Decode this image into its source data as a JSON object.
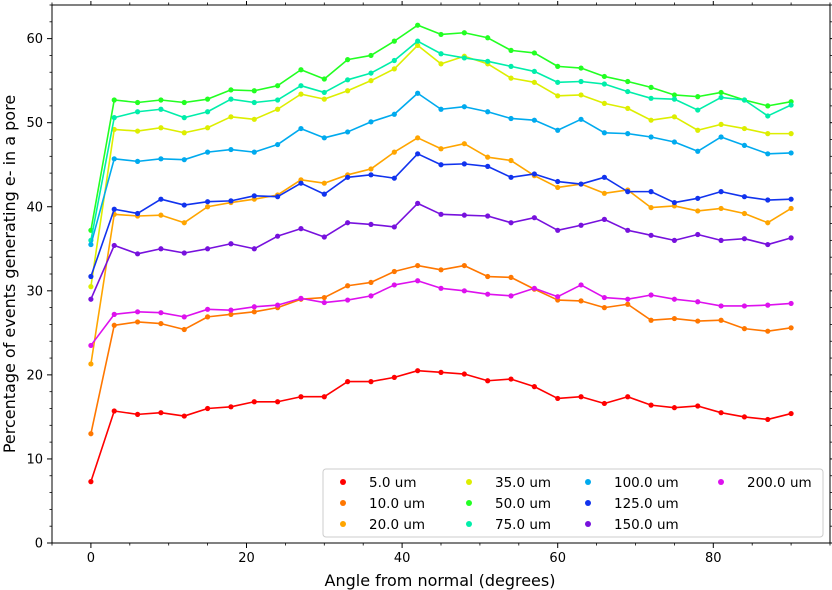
{
  "chart_data": {
    "type": "line",
    "xlabel": "Angle from normal (degrees)",
    "ylabel": "Percentage of events generating e- in a pore",
    "xlim": [
      -5,
      95
    ],
    "ylim": [
      0,
      64
    ],
    "xticks": [
      0,
      20,
      40,
      60,
      80
    ],
    "yticks": [
      0,
      10,
      20,
      30,
      40,
      50,
      60
    ],
    "grid": false,
    "legend_position": "lower-right",
    "legend_columns": 4,
    "x": [
      0,
      3,
      6,
      9,
      12,
      15,
      18,
      21,
      24,
      27,
      30,
      33,
      36,
      39,
      42,
      45,
      48,
      51,
      54,
      57,
      60,
      63,
      66,
      69,
      72,
      75,
      78,
      81,
      84,
      87,
      90
    ],
    "series": [
      {
        "name": "5.0 um",
        "color": "#ff0000",
        "values": [
          7.3,
          15.7,
          15.3,
          15.5,
          15.1,
          16.0,
          16.2,
          16.8,
          16.8,
          17.4,
          17.4,
          19.2,
          19.2,
          19.7,
          20.5,
          20.3,
          20.1,
          19.3,
          19.5,
          18.6,
          17.2,
          17.4,
          16.6,
          17.4,
          16.4,
          16.1,
          16.3,
          15.5,
          15.0,
          14.7,
          15.4
        ]
      },
      {
        "name": "10.0 um",
        "color": "#ff7700",
        "values": [
          13.0,
          25.9,
          26.3,
          26.1,
          25.4,
          26.9,
          27.2,
          27.5,
          28.0,
          29.0,
          29.2,
          30.6,
          31.0,
          32.3,
          33.0,
          32.5,
          33.0,
          31.7,
          31.6,
          30.2,
          28.9,
          28.8,
          28.0,
          28.4,
          26.5,
          26.7,
          26.4,
          26.5,
          25.5,
          25.2,
          25.6
        ]
      },
      {
        "name": "20.0 um",
        "color": "#ffa500",
        "values": [
          21.3,
          39.1,
          38.9,
          39.0,
          38.1,
          40.0,
          40.5,
          40.9,
          41.4,
          43.2,
          42.8,
          43.8,
          44.5,
          46.5,
          48.2,
          46.9,
          47.5,
          45.9,
          45.5,
          43.7,
          42.3,
          42.7,
          41.6,
          42.0,
          39.9,
          40.1,
          39.5,
          39.8,
          39.2,
          38.1,
          39.8
        ]
      },
      {
        "name": "35.0 um",
        "color": "#ddee00",
        "values": [
          30.5,
          49.2,
          49.0,
          49.4,
          48.8,
          49.4,
          50.7,
          50.4,
          51.6,
          53.4,
          52.8,
          53.8,
          55.0,
          56.4,
          59.2,
          57.0,
          57.9,
          57.0,
          55.3,
          54.8,
          53.2,
          53.3,
          52.3,
          51.7,
          50.3,
          50.7,
          49.1,
          49.8,
          49.3,
          48.7,
          48.7
        ]
      },
      {
        "name": "50.0 um",
        "color": "#22ff22",
        "values": [
          37.2,
          52.7,
          52.4,
          52.7,
          52.4,
          52.8,
          53.9,
          53.8,
          54.4,
          56.3,
          55.2,
          57.5,
          58.0,
          59.7,
          61.6,
          60.5,
          60.7,
          60.1,
          58.6,
          58.3,
          56.7,
          56.5,
          55.5,
          54.9,
          54.2,
          53.3,
          53.1,
          53.6,
          52.7,
          52.0,
          52.5
        ]
      },
      {
        "name": "75.0 um",
        "color": "#00eeaa",
        "values": [
          36.0,
          50.6,
          51.3,
          51.6,
          50.6,
          51.3,
          52.8,
          52.4,
          52.7,
          54.4,
          53.6,
          55.1,
          55.9,
          57.4,
          59.7,
          58.2,
          57.7,
          57.3,
          56.7,
          56.1,
          54.8,
          54.9,
          54.6,
          53.7,
          52.9,
          52.8,
          51.5,
          53.0,
          52.7,
          50.8,
          52.1
        ]
      },
      {
        "name": "100.0 um",
        "color": "#00aaee",
        "values": [
          35.5,
          45.7,
          45.4,
          45.7,
          45.6,
          46.5,
          46.8,
          46.5,
          47.4,
          49.3,
          48.2,
          48.9,
          50.1,
          51.0,
          53.5,
          51.6,
          51.9,
          51.3,
          50.5,
          50.3,
          49.1,
          50.4,
          48.8,
          48.7,
          48.3,
          47.7,
          46.6,
          48.3,
          47.3,
          46.3,
          46.4
        ]
      },
      {
        "name": "125.0 um",
        "color": "#1133ee",
        "values": [
          31.7,
          39.7,
          39.2,
          40.9,
          40.2,
          40.6,
          40.7,
          41.3,
          41.2,
          42.8,
          41.5,
          43.5,
          43.8,
          43.4,
          46.3,
          45.0,
          45.1,
          44.8,
          43.5,
          43.9,
          43.0,
          42.7,
          43.5,
          41.8,
          41.8,
          40.5,
          41.0,
          41.8,
          41.2,
          40.8,
          40.9
        ]
      },
      {
        "name": "150.0 um",
        "color": "#7711dd",
        "values": [
          29.0,
          35.4,
          34.4,
          35.0,
          34.5,
          35.0,
          35.6,
          35.0,
          36.5,
          37.4,
          36.4,
          38.1,
          37.9,
          37.6,
          40.4,
          39.1,
          39.0,
          38.9,
          38.1,
          38.7,
          37.2,
          37.8,
          38.5,
          37.2,
          36.6,
          36.0,
          36.7,
          36.0,
          36.2,
          35.5,
          36.3
        ]
      },
      {
        "name": "200.0 um",
        "color": "#dd11ee",
        "values": [
          23.5,
          27.2,
          27.5,
          27.4,
          26.9,
          27.8,
          27.7,
          28.1,
          28.3,
          29.1,
          28.6,
          28.9,
          29.4,
          30.7,
          31.2,
          30.3,
          30.0,
          29.6,
          29.4,
          30.3,
          29.3,
          30.7,
          29.2,
          29.0,
          29.5,
          29.0,
          28.7,
          28.2,
          28.2,
          28.3,
          28.5
        ]
      }
    ]
  }
}
